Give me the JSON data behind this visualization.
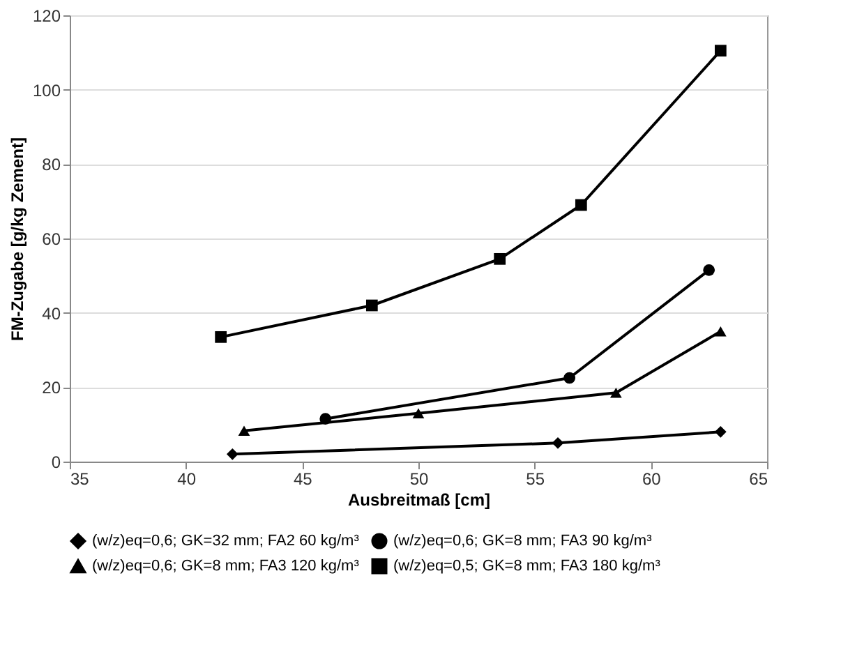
{
  "chart_data": {
    "type": "line",
    "xlabel": "Ausbreitmaß [cm]",
    "ylabel": "FM-Zugabe [g/kg Zement]",
    "xlim": [
      35,
      65
    ],
    "xticks": [
      35,
      40,
      45,
      50,
      55,
      60,
      65
    ],
    "ylim": [
      0,
      120
    ],
    "yticks": [
      0,
      20,
      40,
      60,
      80,
      100,
      120
    ],
    "grid": "y",
    "legend": "bottom",
    "line_style": "solid",
    "series": [
      {
        "name": "(w/z)eq=0,6; GK=32 mm; FA2 60 kg/m³",
        "color": "#000000",
        "marker": "diamond",
        "x": [
          42,
          56,
          63
        ],
        "values": [
          2,
          5,
          8
        ]
      },
      {
        "name": "(w/z)eq=0,6; GK=8 mm; FA3 90 kg/m³",
        "color": "#000000",
        "marker": "circle",
        "x": [
          46,
          56.5,
          62.5
        ],
        "values": [
          11.5,
          22.5,
          51.5
        ]
      },
      {
        "name": "(w/z)eq=0,6; GK=8 mm; FA3 120 kg/m³",
        "color": "#000000",
        "marker": "triangle",
        "x": [
          42.5,
          50,
          58.5,
          63
        ],
        "values": [
          8.3,
          13,
          18.5,
          35
        ]
      },
      {
        "name": "(w/z)eq=0,5; GK=8 mm; FA3 180 kg/m³",
        "color": "#000000",
        "marker": "square",
        "x": [
          41.5,
          48,
          53.5,
          57,
          63
        ],
        "values": [
          33.5,
          42,
          54.5,
          69,
          110.5
        ]
      }
    ]
  }
}
